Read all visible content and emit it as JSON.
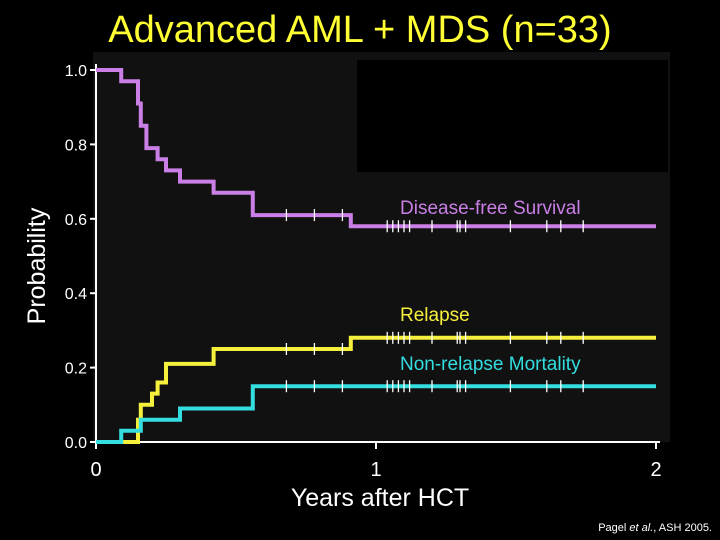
{
  "chart_data": {
    "type": "line",
    "subtype": "kaplan-meier step curves",
    "title": "Advanced AML + MDS (n=33)",
    "xlabel": "Years after HCT",
    "ylabel": "Probability",
    "xlim": [
      0,
      2
    ],
    "ylim": [
      0,
      1
    ],
    "xticks": [
      0,
      1,
      2
    ],
    "xtick_labels": [
      "0",
      "1",
      "2"
    ],
    "yticks": [
      0.0,
      0.2,
      0.4,
      0.6,
      0.8,
      1.0
    ],
    "ytick_labels": [
      "0.0",
      "0.2",
      "0.4",
      "0.6",
      "0.8",
      "1.0"
    ],
    "grid": false,
    "series": [
      {
        "name": "Disease-free Survival",
        "color": "#c97fe6",
        "x": [
          0,
          0.09,
          0.09,
          0.15,
          0.15,
          0.16,
          0.16,
          0.18,
          0.18,
          0.22,
          0.22,
          0.25,
          0.25,
          0.3,
          0.3,
          0.42,
          0.42,
          0.56,
          0.56,
          0.91,
          0.91,
          2.0
        ],
        "y": [
          1.0,
          1.0,
          0.97,
          0.97,
          0.91,
          0.91,
          0.85,
          0.85,
          0.79,
          0.79,
          0.76,
          0.76,
          0.73,
          0.73,
          0.7,
          0.7,
          0.67,
          0.67,
          0.61,
          0.61,
          0.58,
          0.58
        ],
        "censor_x": [
          0.68,
          0.78,
          0.88,
          1.04,
          1.06,
          1.08,
          1.1,
          1.12,
          1.2,
          1.29,
          1.3,
          1.32,
          1.48,
          1.61,
          1.66,
          1.74
        ]
      },
      {
        "name": "Relapse",
        "color": "#f5f03c",
        "x": [
          0,
          0.15,
          0.15,
          0.16,
          0.16,
          0.2,
          0.2,
          0.22,
          0.22,
          0.25,
          0.25,
          0.42,
          0.42,
          0.91,
          0.91,
          2.0
        ],
        "y": [
          0.0,
          0.0,
          0.06,
          0.06,
          0.1,
          0.1,
          0.13,
          0.13,
          0.16,
          0.16,
          0.21,
          0.21,
          0.25,
          0.25,
          0.28,
          0.28
        ],
        "censor_x": [
          0.68,
          0.78,
          0.88,
          1.04,
          1.06,
          1.08,
          1.1,
          1.12,
          1.2,
          1.29,
          1.3,
          1.32,
          1.48,
          1.61,
          1.66,
          1.74
        ]
      },
      {
        "name": "Non-relapse Mortality",
        "color": "#33dde0",
        "x": [
          0,
          0.09,
          0.09,
          0.16,
          0.16,
          0.3,
          0.3,
          0.56,
          0.56,
          2.0
        ],
        "y": [
          0.0,
          0.0,
          0.03,
          0.03,
          0.06,
          0.06,
          0.09,
          0.09,
          0.15,
          0.15
        ],
        "censor_x": [
          0.68,
          0.78,
          0.88,
          1.04,
          1.06,
          1.08,
          1.1,
          1.12,
          1.2,
          1.29,
          1.3,
          1.32,
          1.48,
          1.61,
          1.66,
          1.74
        ]
      }
    ],
    "annotations": [
      {
        "text": "Disease-free Survival",
        "series": 0
      },
      {
        "text": "Relapse",
        "series": 1
      },
      {
        "text": "Non-relapse Mortality",
        "series": 2
      }
    ]
  },
  "footnote": {
    "author": "Pagel ",
    "etal": "et al.",
    "source": ", ASH 2005."
  },
  "colors": {
    "title": "#ffff33",
    "axis": "#ffffff",
    "panel": "#111111"
  }
}
